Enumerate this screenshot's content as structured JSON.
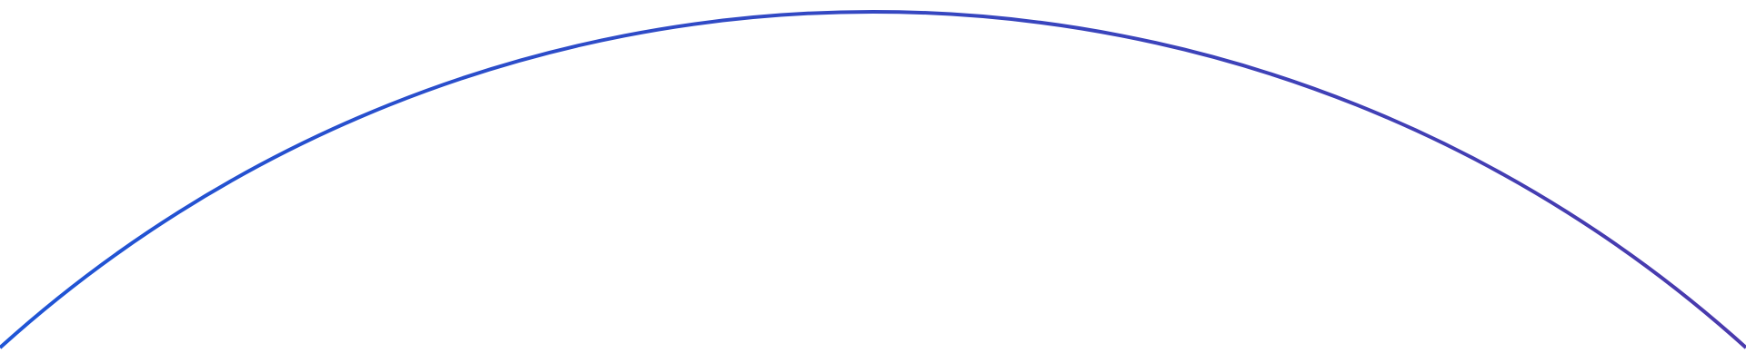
{
  "arc": {
    "color_start": "#1f55d6",
    "color_end": "#4a3aad"
  }
}
